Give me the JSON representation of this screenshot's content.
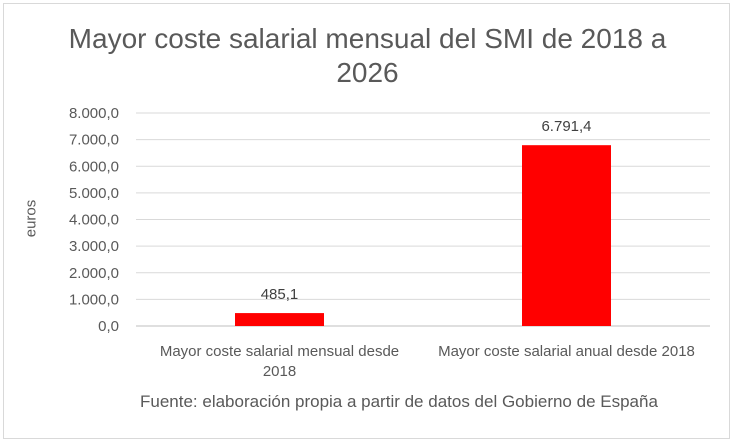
{
  "chart_data": {
    "type": "bar",
    "title": "Mayor coste salarial mensual del SMI de 2018 a 2026",
    "ylabel": "euros",
    "xlabel": "",
    "categories": [
      "Mayor coste salarial mensual desde 2018",
      "Mayor coste salarial anual desde 2018"
    ],
    "values": [
      485.1,
      6791.4
    ],
    "data_labels": [
      "485,1",
      "6.791,4"
    ],
    "ylim": [
      0,
      8000
    ],
    "yticks": [
      "0,0",
      "1.000,0",
      "2.000,0",
      "3.000,0",
      "4.000,0",
      "5.000,0",
      "6.000,0",
      "7.000,0",
      "8.000,0"
    ],
    "grid": true,
    "bar_color": "#ff0000",
    "source": "Fuente: elaboración propia a partir de datos del Gobierno de España"
  }
}
